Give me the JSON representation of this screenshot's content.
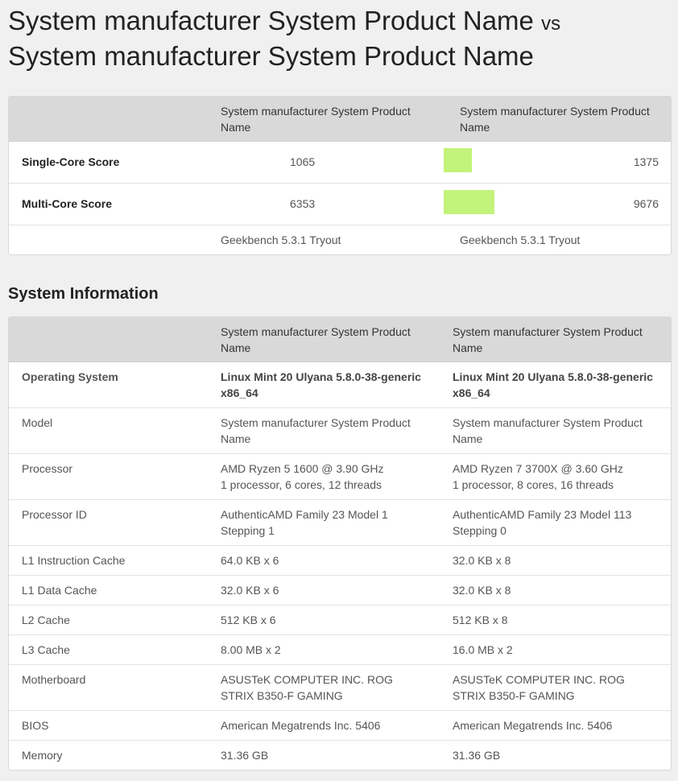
{
  "page": {
    "title_a": "System manufacturer System Product Name",
    "vs": "vs",
    "title_b": "System manufacturer System Product Name"
  },
  "scores": {
    "header": {
      "col_a": "System manufacturer System Product Name",
      "col_b": "System manufacturer System Product Name"
    },
    "rows": [
      {
        "label": "Single-Core Score",
        "value_a": "1065",
        "value_b": "1375",
        "bar_fraction": 0.29
      },
      {
        "label": "Multi-Core Score",
        "value_a": "6353",
        "value_b": "9676",
        "bar_fraction": 0.52
      }
    ],
    "footer": {
      "version_a": "Geekbench 5.3.1 Tryout",
      "version_b": "Geekbench 5.3.1 Tryout"
    },
    "bar_color": "#c2f37a"
  },
  "sysinfo": {
    "section_title": "System Information",
    "header": {
      "col_a": "System manufacturer System Product Name",
      "col_b": "System manufacturer System Product Name"
    },
    "rows": [
      {
        "label": "Operating System",
        "a": "Linux Mint 20 Ulyana 5.8.0-38-generic x86_64",
        "b": "Linux Mint 20 Ulyana 5.8.0-38-generic x86_64"
      },
      {
        "label": "Model",
        "a": "System manufacturer System Product Name",
        "b": "System manufacturer System Product Name"
      },
      {
        "label": "Processor",
        "a": "AMD Ryzen 5 1600 @ 3.90 GHz",
        "a2": "1 processor, 6 cores, 12 threads",
        "b": "AMD Ryzen 7 3700X @ 3.60 GHz",
        "b2": "1 processor, 8 cores, 16 threads"
      },
      {
        "label": "Processor ID",
        "a": "AuthenticAMD Family 23 Model 1 Stepping 1",
        "b": "AuthenticAMD Family 23 Model 113 Stepping 0"
      },
      {
        "label": "L1 Instruction Cache",
        "a": "64.0 KB x 6",
        "b": "32.0 KB x 8"
      },
      {
        "label": "L1 Data Cache",
        "a": "32.0 KB x 6",
        "b": "32.0 KB x 8"
      },
      {
        "label": "L2 Cache",
        "a": "512 KB x 6",
        "b": "512 KB x 8"
      },
      {
        "label": "L3 Cache",
        "a": "8.00 MB x 2",
        "b": "16.0 MB x 2"
      },
      {
        "label": "Motherboard",
        "a": "ASUSTeK COMPUTER INC. ROG STRIX B350-F GAMING",
        "b": "ASUSTeK COMPUTER INC. ROG STRIX B350-F GAMING"
      },
      {
        "label": "BIOS",
        "a": "American Megatrends Inc. 5406",
        "b": "American Megatrends Inc. 5406"
      },
      {
        "label": "Memory",
        "a": "31.36 GB",
        "b": "31.36 GB"
      }
    ]
  }
}
